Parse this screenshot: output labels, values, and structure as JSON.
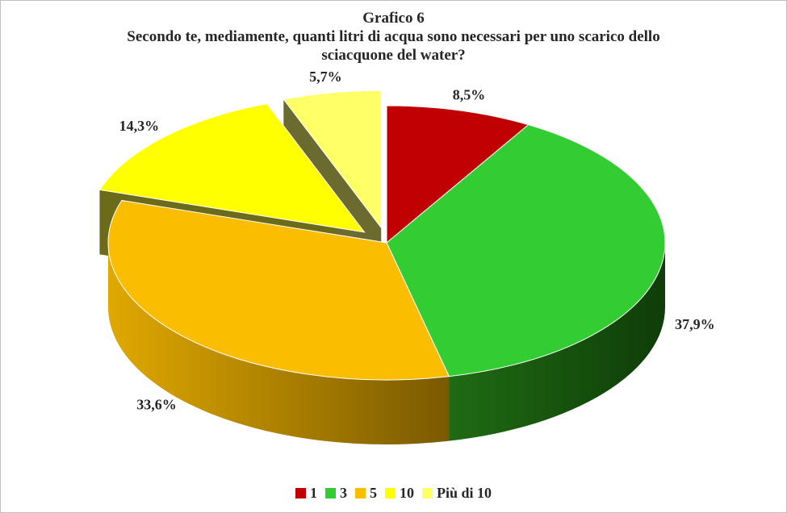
{
  "chart_data": {
    "type": "pie",
    "title_lines": [
      "Grafico 6",
      "Secondo te, mediamente,  quanti  litri  di acqua sono necessari per uno scarico dello",
      "sciacquone del water?"
    ],
    "slices": [
      {
        "name": "1",
        "value": 8.5,
        "label": "8,5%",
        "color": "#c00000",
        "side_color": "#7a0000",
        "exploded": false
      },
      {
        "name": "3",
        "value": 37.9,
        "label": "37,9%",
        "color": "#33cc33",
        "side_color": "#1a5c12",
        "exploded": false
      },
      {
        "name": "5",
        "value": 33.6,
        "label": "33,6%",
        "color": "#fbbd00",
        "side_color": "#b88a05",
        "exploded": false
      },
      {
        "name": "10",
        "value": 14.3,
        "label": "14,3%",
        "color": "#ffff00",
        "side_color": "#6b6b1a",
        "exploded": true
      },
      {
        "name": "Più di 10",
        "value": 5.7,
        "label": "5,7%",
        "color": "#ffff66",
        "side_color": "#6b6b30",
        "exploded": true
      }
    ],
    "legend_position": "bottom",
    "style": "3d-exploded"
  }
}
